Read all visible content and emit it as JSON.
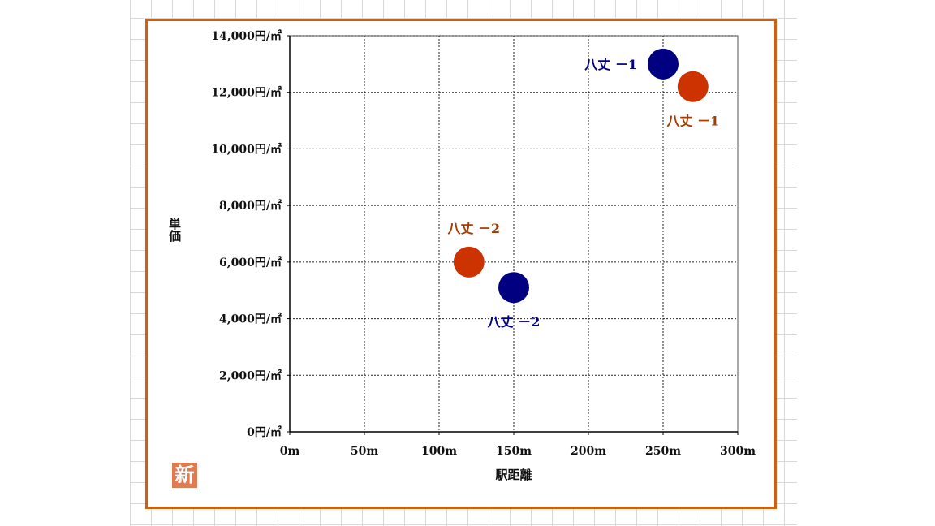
{
  "chart_data": {
    "type": "scatter",
    "xlabel": "駅距離",
    "ylabel": "単価",
    "xlim": [
      0,
      300
    ],
    "ylim": [
      0,
      14000
    ],
    "x_ticks": [
      0,
      50,
      100,
      150,
      200,
      250,
      300
    ],
    "x_tick_labels": [
      "0m",
      "50m",
      "100m",
      "150m",
      "200m",
      "250m",
      "300m"
    ],
    "y_ticks": [
      0,
      2000,
      4000,
      6000,
      8000,
      10000,
      12000,
      14000
    ],
    "y_tick_labels": [
      "0円/㎡",
      "2,000円/㎡",
      "4,000円/㎡",
      "6,000円/㎡",
      "8,000円/㎡",
      "10,000円/㎡",
      "12,000円/㎡",
      "14,000円/㎡"
    ],
    "grid": true,
    "points": [
      {
        "label": "八丈 －1",
        "x": 250,
        "y": 13000,
        "color": "#000080",
        "label_pos": "left"
      },
      {
        "label": "八丈 －1",
        "x": 270,
        "y": 12200,
        "color": "#cc3300",
        "label_pos": "below"
      },
      {
        "label": "八丈 －2",
        "x": 120,
        "y": 6000,
        "color": "#cc3300",
        "label_pos": "above"
      },
      {
        "label": "八丈 －2",
        "x": 150,
        "y": 5100,
        "color": "#000080",
        "label_pos": "below"
      }
    ]
  },
  "badge": "新"
}
